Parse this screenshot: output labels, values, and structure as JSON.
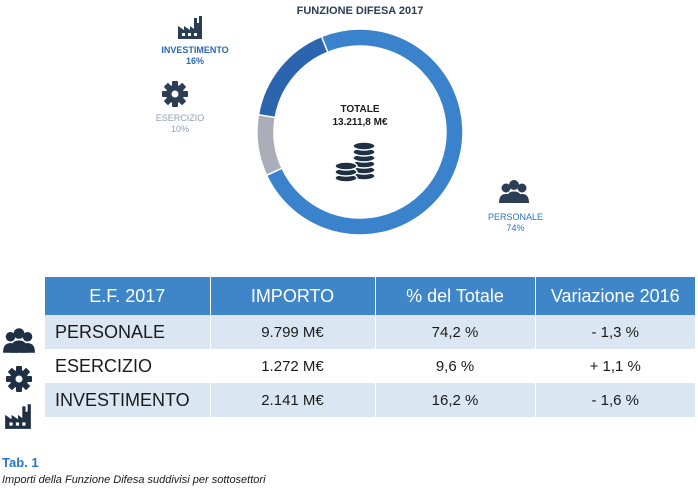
{
  "colors": {
    "personale": "#3a82cc",
    "esercizio": "#a9aeb8",
    "investimento": "#2c65ad",
    "header": "#3f86c8",
    "row_alt": "#dbe6f3"
  },
  "chart_data": {
    "type": "pie",
    "title": "FUNZIONE DIFESA 2017",
    "center_label": "TOTALE",
    "center_value": "13.211,8 M€",
    "slices": [
      {
        "name": "PERSONALE",
        "percent_label": "74%",
        "value": 74.2
      },
      {
        "name": "ESERCIZIO",
        "percent_label": "10%",
        "value": 9.6
      },
      {
        "name": "INVESTIMENTO",
        "percent_label": "16%",
        "value": 16.2
      }
    ]
  },
  "table": {
    "headers": [
      "E.F. 2017",
      "IMPORTO",
      "% del Totale",
      "Variazione 2016"
    ],
    "rows": [
      {
        "name": "PERSONALE",
        "importo": "9.799 M€",
        "percent": "74,2 %",
        "variazione": "- 1,3 %",
        "icon": "people-icon"
      },
      {
        "name": "ESERCIZIO",
        "importo": "1.272 M€",
        "percent": "9,6 %",
        "variazione": "+ 1,1 %",
        "icon": "gear-icon"
      },
      {
        "name": "INVESTIMENTO",
        "importo": "2.141 M€",
        "percent": "16,2 %",
        "variazione": "- 1,6 %",
        "icon": "factory-icon"
      }
    ]
  },
  "caption": {
    "title": "Tab. 1",
    "subtitle": "Importi della Funzione Difesa suddivisi per sottosettori"
  }
}
